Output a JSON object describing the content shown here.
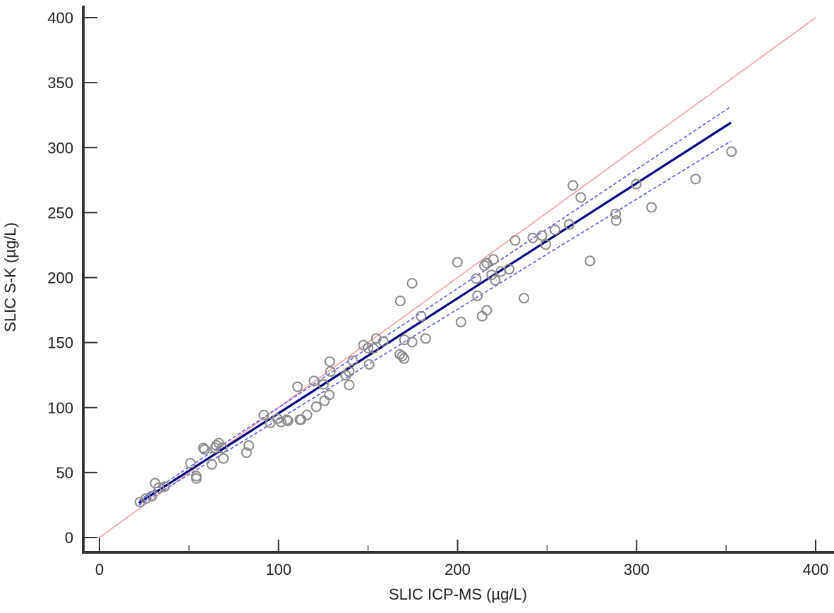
{
  "chart_data": {
    "type": "scatter",
    "title": "",
    "xlabel": "SLIC ICP-MS (µg/L)",
    "ylabel": "SLIC S-K (µg/L)",
    "xlim": [
      0,
      400
    ],
    "ylim": [
      0,
      400
    ],
    "x_ticks": [
      0,
      100,
      200,
      300,
      400
    ],
    "x_minor_ticks": [
      50,
      150,
      250,
      350
    ],
    "y_ticks": [
      0,
      50,
      100,
      150,
      200,
      250,
      300,
      350,
      400
    ],
    "grid": false,
    "legend": null,
    "series": [
      {
        "name": "Samples",
        "kind": "scatter",
        "marker": "open-circle",
        "color": "#8a8a8a",
        "points": [
          [
            22.6,
            27.3
          ],
          [
            25.9,
            30.0
          ],
          [
            29.2,
            31.8
          ],
          [
            31.1,
            41.8
          ],
          [
            33.1,
            38.2
          ],
          [
            36.3,
            39.1
          ],
          [
            50.8,
            57.2
          ],
          [
            54.1,
            45.4
          ],
          [
            54.1,
            47.2
          ],
          [
            58.0,
            68.9
          ],
          [
            58.7,
            67.7
          ],
          [
            62.7,
            56.3
          ],
          [
            64.6,
            68.9
          ],
          [
            65.3,
            70.8
          ],
          [
            66.6,
            72.6
          ],
          [
            68.6,
            68.9
          ],
          [
            69.2,
            60.8
          ],
          [
            82.1,
            65.3
          ],
          [
            83.4,
            70.8
          ],
          [
            91.8,
            94.3
          ],
          [
            95.5,
            88.3
          ],
          [
            99.4,
            91.5
          ],
          [
            101.4,
            88.9
          ],
          [
            104.6,
            90.7
          ],
          [
            105.3,
            89.8
          ],
          [
            110.6,
            116.0
          ],
          [
            111.9,
            90.7
          ],
          [
            112.6,
            90.7
          ],
          [
            115.9,
            94.3
          ],
          [
            119.8,
            120.5
          ],
          [
            121.1,
            100.6
          ],
          [
            125.1,
            117.8
          ],
          [
            125.7,
            105.2
          ],
          [
            128.3,
            109.7
          ],
          [
            128.6,
            135.3
          ],
          [
            129.0,
            127.7
          ],
          [
            137.5,
            124.9
          ],
          [
            139.5,
            127.7
          ],
          [
            139.5,
            117.3
          ],
          [
            141.5,
            135.9
          ],
          [
            147.4,
            148.0
          ],
          [
            150.0,
            145.8
          ],
          [
            150.6,
            133.2
          ],
          [
            153.0,
            145.5
          ],
          [
            154.6,
            153.1
          ],
          [
            158.5,
            150.9
          ],
          [
            167.7,
            140.9
          ],
          [
            168.0,
            182.0
          ],
          [
            169.1,
            139.5
          ],
          [
            170.1,
            137.7
          ],
          [
            170.3,
            152.1
          ],
          [
            174.6,
            195.6
          ],
          [
            174.6,
            150.4
          ],
          [
            179.6,
            170.3
          ],
          [
            182.2,
            153.1
          ],
          [
            199.9,
            211.8
          ],
          [
            201.9,
            165.8
          ],
          [
            210.4,
            199.2
          ],
          [
            211.1,
            186.0
          ],
          [
            213.7,
            170.3
          ],
          [
            215.0,
            209.2
          ],
          [
            216.3,
            211.0
          ],
          [
            216.3,
            174.8
          ],
          [
            219.0,
            202.0
          ],
          [
            220.0,
            214.0
          ],
          [
            221.0,
            198.0
          ],
          [
            224.2,
            204.7
          ],
          [
            228.8,
            206.5
          ],
          [
            232.1,
            228.6
          ],
          [
            237.1,
            184.2
          ],
          [
            242.0,
            230.5
          ],
          [
            247.2,
            232.3
          ],
          [
            249.2,
            225.4
          ],
          [
            254.4,
            236.7
          ],
          [
            262.3,
            240.9
          ],
          [
            264.4,
            270.9
          ],
          [
            268.8,
            261.7
          ],
          [
            273.9,
            212.8
          ],
          [
            288.3,
            249.0
          ],
          [
            288.6,
            243.9
          ],
          [
            299.8,
            271.9
          ],
          [
            308.3,
            254.1
          ],
          [
            332.9,
            275.8
          ],
          [
            353.0,
            296.9
          ]
        ]
      },
      {
        "name": "Identity line (y = x)",
        "kind": "line",
        "color": "#f0a0a4",
        "style": "solid",
        "points": [
          [
            0,
            0
          ],
          [
            400,
            400
          ]
        ]
      },
      {
        "name": "Regression line",
        "kind": "line",
        "color": "#000080",
        "style": "solid",
        "points": [
          [
            22.0,
            26.6
          ],
          [
            352.7,
            319.2
          ]
        ]
      },
      {
        "name": "Upper 95% CI",
        "kind": "line",
        "color": "#5a5ae0",
        "style": "dashed",
        "points": [
          [
            22.0,
            28.5
          ],
          [
            352.7,
            331.6
          ]
        ]
      },
      {
        "name": "Lower 95% CI",
        "kind": "line",
        "color": "#5a5ae0",
        "style": "dashed",
        "points": [
          [
            22.0,
            24.8
          ],
          [
            352.7,
            305.0
          ]
        ]
      }
    ]
  },
  "axes": {
    "x_title": "SLIC ICP-MS (µg/L)",
    "y_title": "SLIC S-K (µg/L)"
  }
}
